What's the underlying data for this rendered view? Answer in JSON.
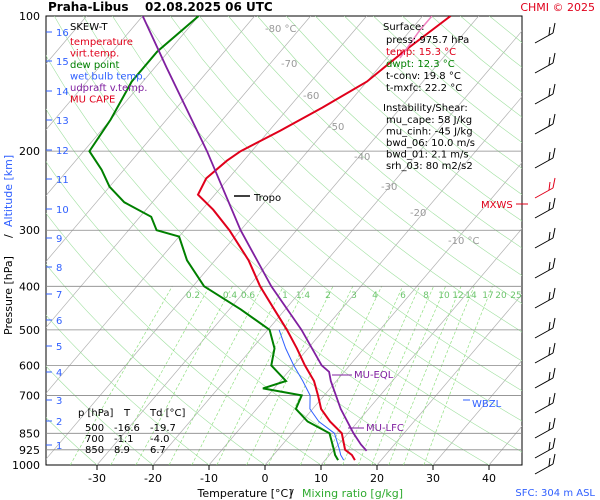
{
  "header": {
    "station": "Praha-Libus",
    "datetime": "02.08.2025 06 UTC",
    "credit": "CHMI © 2025"
  },
  "legend": {
    "title": "SKEW-T",
    "items": [
      {
        "label": "temperature",
        "color": "#e0001b"
      },
      {
        "label": "virt.temp.",
        "color": "#e0001b"
      },
      {
        "label": "dew point",
        "color": "#008000"
      },
      {
        "label": "wet bulb temp.",
        "color": "#3060ff"
      },
      {
        "label": "udpraft v.temp.",
        "color": "#8020a0"
      },
      {
        "label": "MU CAPE",
        "color": "#e0001b"
      }
    ]
  },
  "surface": {
    "title": "Surface:",
    "lines": [
      {
        "label": "press: 975.7 hPa",
        "color": "#000000"
      },
      {
        "label": "temp: 15.3 °C",
        "color": "#e0001b"
      },
      {
        "label": "dwpt: 12.3 °C",
        "color": "#008000"
      },
      {
        "label": "t-conv: 19.8 °C",
        "color": "#000000"
      },
      {
        "label": "t-mxfc: 22.2 °C",
        "color": "#000000"
      }
    ]
  },
  "instability": {
    "title": "Instability/Shear:",
    "lines": [
      "mu_cape: 58 J/kg",
      "mu_cinh: -45 J/kg",
      "bwd_06: 10.0 m/s",
      "bwd_01: 2.1 m/s",
      "srh_03: 80 m2/s2"
    ]
  },
  "table": {
    "headers": [
      "p [hPa]",
      "T",
      "Td [°C]"
    ],
    "rows": [
      [
        "500",
        "-16.6",
        "-19.7"
      ],
      [
        "700",
        "-1.1",
        "-4.0"
      ],
      [
        "850",
        "8.9",
        "6.7"
      ]
    ]
  },
  "annotations": {
    "tropo": "Tropo",
    "mxws": "MXWS",
    "mu_eql": "MU-EQL",
    "mu_lfc": "MU-LFC",
    "wbzl": "WBZL",
    "sfc": "SFC: 304 m ASL"
  },
  "colors": {
    "temperature": "#e0001b",
    "dewpoint": "#008000",
    "wetbulb": "#3060ff",
    "parcel": "#8020a0",
    "isotherm": "#b0b0b0",
    "mixing": "#90e080",
    "dry_adiabat": "#a0e0a0"
  },
  "chart_data": {
    "type": "line",
    "xlabel": "Temperature [°C]",
    "xlabel2": "Mixing ratio [g/kg]",
    "ylabel": "Pressure [hPa]",
    "ylabel2": "Altitude [km]",
    "x_ticks": [
      -30,
      -20,
      -10,
      0,
      10,
      20,
      30,
      40
    ],
    "pressure_levels": [
      100,
      200,
      300,
      400,
      500,
      600,
      700,
      850,
      925,
      1000
    ],
    "altitude_ticks": [
      1,
      2,
      3,
      4,
      5,
      6,
      7,
      8,
      9,
      10,
      11,
      12,
      13,
      14,
      15,
      16
    ],
    "isotherm_labels": [
      "-80 °C",
      "-70",
      "-60",
      "-50",
      "-40",
      "-30",
      "-20",
      "-10 °C"
    ],
    "mixing_ratio_labels": [
      "0.2",
      "0.4",
      "0.6",
      "1",
      "1.4",
      "2",
      "3",
      "4",
      "6",
      "8",
      "10",
      "12",
      "14",
      "17",
      "20",
      "25"
    ],
    "series": [
      {
        "name": "temperature",
        "points": [
          [
            15.3,
            975
          ],
          [
            14,
            950
          ],
          [
            12,
            925
          ],
          [
            8.9,
            850
          ],
          [
            5,
            800
          ],
          [
            1.5,
            750
          ],
          [
            -1.1,
            700
          ],
          [
            -4,
            650
          ],
          [
            -8,
            600
          ],
          [
            -12,
            550
          ],
          [
            -16.6,
            500
          ],
          [
            -22,
            450
          ],
          [
            -28,
            400
          ],
          [
            -34,
            350
          ],
          [
            -42,
            300
          ],
          [
            -48,
            270
          ],
          [
            -53,
            250
          ],
          [
            -54,
            230
          ],
          [
            -53,
            210
          ],
          [
            -52,
            200
          ],
          [
            -48,
            180
          ],
          [
            -44,
            160
          ],
          [
            -40,
            140
          ],
          [
            -38,
            120
          ],
          [
            -35,
            100
          ]
        ]
      },
      {
        "name": "dew point",
        "points": [
          [
            12.3,
            975
          ],
          [
            11,
            950
          ],
          [
            10,
            925
          ],
          [
            6.7,
            850
          ],
          [
            1,
            800
          ],
          [
            -3,
            750
          ],
          [
            -4,
            700
          ],
          [
            -12,
            675
          ],
          [
            -9,
            650
          ],
          [
            -14,
            600
          ],
          [
            -16,
            550
          ],
          [
            -19.7,
            500
          ],
          [
            -28,
            450
          ],
          [
            -38,
            400
          ],
          [
            -45,
            350
          ],
          [
            -50,
            310
          ],
          [
            -55,
            300
          ],
          [
            -58,
            280
          ],
          [
            -65,
            260
          ],
          [
            -70,
            240
          ],
          [
            -74,
            220
          ],
          [
            -79,
            200
          ],
          [
            -80,
            170
          ],
          [
            -82,
            140
          ],
          [
            -82,
            120
          ],
          [
            -80,
            100
          ]
        ]
      },
      {
        "name": "wet bulb temp.",
        "points": [
          [
            13.3,
            975
          ],
          [
            12,
            950
          ],
          [
            11,
            925
          ],
          [
            7.6,
            850
          ],
          [
            3,
            800
          ],
          [
            -0.5,
            750
          ],
          [
            -2.5,
            700
          ],
          [
            -6,
            650
          ],
          [
            -10,
            600
          ],
          [
            -14,
            550
          ],
          [
            -18,
            500
          ]
        ]
      },
      {
        "name": "udpraft v.temp.",
        "points": [
          [
            16,
            930
          ],
          [
            14,
            900
          ],
          [
            11,
            850
          ],
          [
            5,
            750
          ],
          [
            -1,
            650
          ],
          [
            -2.7,
            620
          ],
          [
            -5,
            600
          ],
          [
            -14,
            500
          ],
          [
            -26,
            400
          ],
          [
            -40,
            300
          ],
          [
            -58,
            200
          ],
          [
            -78,
            130
          ],
          [
            -90,
            100
          ]
        ]
      }
    ]
  }
}
